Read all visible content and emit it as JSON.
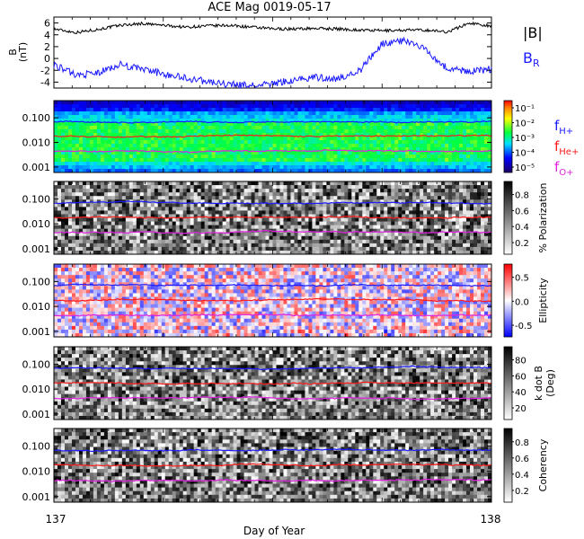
{
  "title": "ACE Mag 0019-05-17",
  "xlabel": "Day of Year",
  "x_ticks": [
    "137",
    "138"
  ],
  "colors": {
    "btotal": "#000000",
    "br": "#1a1aff",
    "fH": "#1a1aff",
    "fHe": "#ff1a1a",
    "fO": "#e020e0"
  },
  "legend": {
    "btotal": "|B|",
    "br_main": "B",
    "br_sub": "R",
    "fH_main": "f",
    "fH_sub": "H+",
    "fHe_main": "f",
    "fHe_sub": "He+",
    "fO_main": "f",
    "fO_sub": "O+"
  },
  "chart_data": [
    {
      "type": "line",
      "ylabel_line1": "B",
      "ylabel_line2": "(nT)",
      "ylim": [
        -5,
        7
      ],
      "y_ticks": [
        "6",
        "4",
        "2",
        "0",
        "-2",
        "-4"
      ],
      "x": [
        137.0,
        137.05,
        137.1,
        137.15,
        137.2,
        137.25,
        137.3,
        137.35,
        137.4,
        137.45,
        137.5,
        137.55,
        137.6,
        137.65,
        137.7,
        137.75,
        137.8,
        137.85,
        137.9,
        137.95,
        138.0
      ],
      "series": [
        {
          "key": "btotal",
          "values": [
            5.0,
            4.4,
            4.9,
            5.6,
            5.9,
            5.6,
            5.3,
            5.5,
            5.6,
            5.3,
            5.0,
            5.0,
            5.1,
            5.0,
            4.8,
            4.7,
            4.8,
            4.8,
            4.5,
            6.0,
            5.5
          ]
        },
        {
          "key": "br",
          "values": [
            -1.0,
            -2.8,
            -2.5,
            -1.0,
            -1.8,
            -2.6,
            -3.3,
            -3.9,
            -4.4,
            -4.6,
            -4.3,
            -3.6,
            -3.2,
            -3.4,
            -2.0,
            2.5,
            3.0,
            1.5,
            -1.8,
            -2.2,
            -1.8
          ]
        }
      ]
    },
    {
      "type": "heatmap",
      "name": "power",
      "ylim": [
        0.0006,
        0.5
      ],
      "y_ticks": [
        "0.100",
        "0.010",
        "0.001"
      ],
      "colorbar_ticks": [
        "10⁻¹",
        "10⁻²",
        "10⁻³",
        "10⁻⁴",
        "10⁻⁵"
      ],
      "lines": {
        "fH": 0.07,
        "fHe": 0.018,
        "fO": 0.0045
      }
    },
    {
      "type": "heatmap",
      "name": "polarization",
      "ylim": [
        0.0006,
        0.5
      ],
      "y_ticks": [
        "0.100",
        "0.010",
        "0.001"
      ],
      "colorbar_label": "% Polarization",
      "colorbar_ticks": [
        "0.8",
        "0.6",
        "0.4",
        "0.2"
      ],
      "lines": {
        "fH": 0.07,
        "fHe": 0.018,
        "fO": 0.0045
      }
    },
    {
      "type": "heatmap",
      "name": "ellipticity",
      "ylim": [
        0.0006,
        0.5
      ],
      "y_ticks": [
        "0.100",
        "0.010",
        "0.001"
      ],
      "colorbar_label": "Ellipticity",
      "colorbar_ticks": [
        "0.5",
        "0.0",
        "-0.5"
      ],
      "lines": {
        "fH": 0.07,
        "fHe": 0.018,
        "fO": 0.0045
      }
    },
    {
      "type": "heatmap",
      "name": "kdotb",
      "ylim": [
        0.0006,
        0.5
      ],
      "y_ticks": [
        "0.100",
        "0.010",
        "0.001"
      ],
      "colorbar_label_line1": "k dot B",
      "colorbar_label_line2": "(Deg)",
      "colorbar_ticks": [
        "80",
        "60",
        "40",
        "20"
      ],
      "lines": {
        "fH": 0.07,
        "fHe": 0.018,
        "fO": 0.0045
      }
    },
    {
      "type": "heatmap",
      "name": "coherency",
      "ylim": [
        0.0006,
        0.5
      ],
      "y_ticks": [
        "0.100",
        "0.010",
        "0.001"
      ],
      "colorbar_label": "Coherency",
      "colorbar_ticks": [
        "0.8",
        "0.6",
        "0.4",
        "0.2"
      ],
      "lines": {
        "fH": 0.07,
        "fHe": 0.018,
        "fO": 0.0045
      }
    }
  ]
}
